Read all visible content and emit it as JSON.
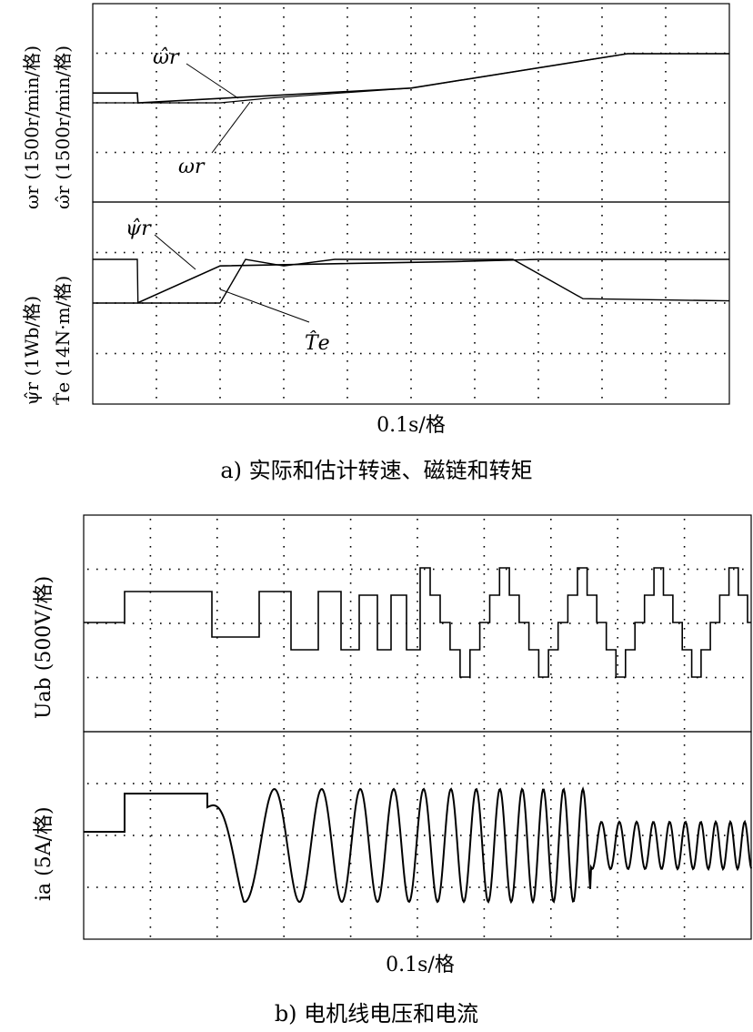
{
  "figure_a": {
    "caption": "a) 实际和估计转速、磁链和转矩",
    "xlabel": "0.1s/格",
    "top_ylabel_1": "ωr (1500r/min/格)",
    "top_ylabel_2": "ω̂r (1500r/min/格)",
    "bottom_ylabel_1": "ψ̂r (1Wb/格)",
    "bottom_ylabel_2": "T̂e (14N·m/格)",
    "annotations": {
      "omega_hat": "ω̂r",
      "omega": "ωr",
      "psi_hat": "ψ̂r",
      "te_hat": "T̂e"
    }
  },
  "figure_b": {
    "caption": "b) 电机线电压和电流",
    "xlabel": "0.1s/格",
    "top_ylabel": "Uab (500V/格)",
    "bottom_ylabel": "ia (5A/格)"
  },
  "chart_data": [
    {
      "type": "line",
      "panel": "a-top",
      "x_unit": "s",
      "x_div": 0.1,
      "xlim": [
        0,
        1.0
      ],
      "ylim_div": [
        -2,
        2
      ],
      "series": [
        {
          "name": "ω̂r",
          "x": [
            0,
            0.07,
            0.071,
            0.5,
            0.84,
            1.0
          ],
          "y": [
            0.2,
            0.2,
            0,
            0.3,
            1.0,
            1.0
          ]
        },
        {
          "name": "ωr",
          "x": [
            0,
            0.2,
            0.28,
            0.5,
            0.84,
            1.0
          ],
          "y": [
            0,
            0,
            0.1,
            0.3,
            1.0,
            1.0
          ]
        }
      ]
    },
    {
      "type": "line",
      "panel": "a-bottom",
      "x_unit": "s",
      "x_div": 0.1,
      "xlim": [
        0,
        1.0
      ],
      "ylim_div": [
        -2,
        2
      ],
      "series": [
        {
          "name": "ψ̂r",
          "x": [
            0,
            0.07,
            0.2,
            0.38,
            0.57,
            0.7,
            1.0
          ],
          "y": [
            0,
            0,
            0.85,
            0.9,
            0.95,
            1.0,
            1.0
          ]
        },
        {
          "name": "T̂e",
          "x": [
            0,
            0.07,
            0.071,
            0.2,
            0.24,
            0.3,
            0.38,
            0.5,
            0.66,
            0.77,
            1.0
          ],
          "y": [
            1.0,
            1.0,
            0,
            0,
            1.0,
            0.85,
            1.0,
            1.0,
            1.0,
            0.1,
            0.05
          ]
        }
      ]
    },
    {
      "type": "line",
      "panel": "b-top",
      "series_name": "Uab",
      "x_unit": "s",
      "x_div": 0.1,
      "note": "PWM line voltage; frequency increases over time",
      "segments_t": [
        0,
        0.06,
        0.19,
        0.26,
        0.51,
        1.0
      ],
      "amplitude_div": [
        0,
        0.6,
        0.6,
        0.6,
        1.0,
        1.0
      ]
    },
    {
      "type": "line",
      "panel": "b-bottom",
      "series_name": "ia",
      "x_unit": "s",
      "x_div": 0.1,
      "note": "Phase current: DC step then sinusoid of rising frequency",
      "dc_step_div": 0.7,
      "peak_amp_div": 1.3,
      "late_amp_div": 0.6
    }
  ]
}
